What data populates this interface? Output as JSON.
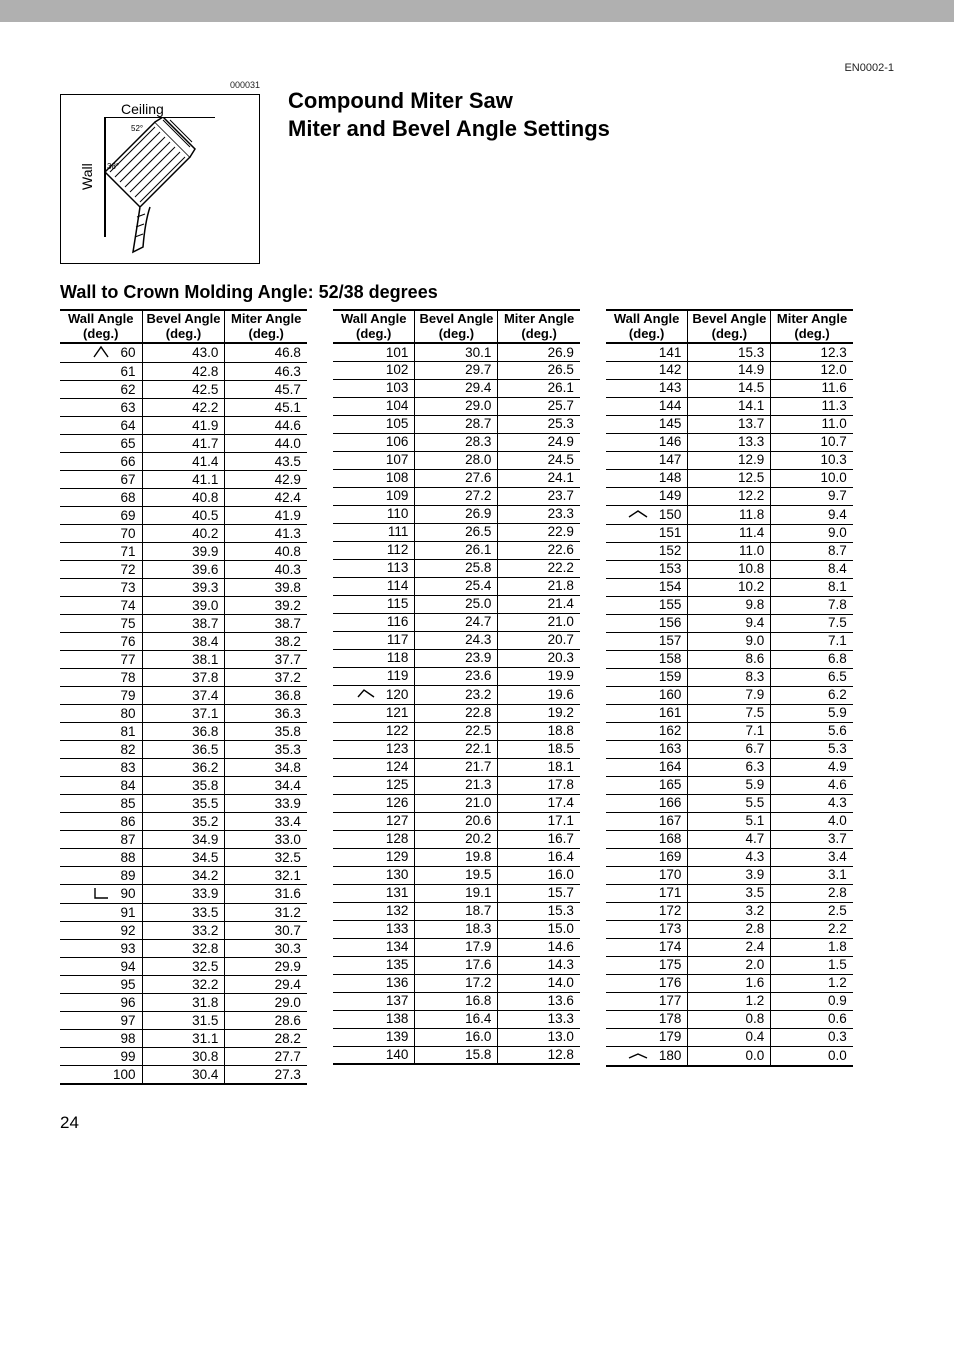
{
  "doc_code": "EN0002-1",
  "img_code": "000031",
  "title1": "Compound Miter Saw",
  "title2": "Miter and Bevel Angle Settings",
  "diagram": {
    "ceiling": "Ceiling",
    "wall": "Wall",
    "angle1": "52°",
    "angle2": "38°"
  },
  "section_title": "Wall to Crown Molding Angle: 52/38 degrees",
  "headers": {
    "wall": "Wall Angle",
    "bevel": "Bevel Angle",
    "miter": "Miter Angle",
    "deg": "(deg.)"
  },
  "page_num": "24",
  "icons": {
    "60": "angle-open-acute",
    "90": "angle-right",
    "120": "angle-obtuse",
    "150": "angle-wide",
    "180": "angle-flat"
  },
  "tall_rows": [
    60,
    79,
    80,
    90,
    91,
    120,
    121,
    131,
    132,
    150,
    160,
    161,
    171,
    172,
    180
  ],
  "colors": {
    "bar": "#b0b0b0",
    "text": "#000000"
  },
  "font_size": {
    "body": 13.5,
    "header": 13,
    "title": 22,
    "section": 18
  },
  "table1": [
    [
      60,
      "43.0",
      "46.8"
    ],
    [
      61,
      "42.8",
      "46.3"
    ],
    [
      62,
      "42.5",
      "45.7"
    ],
    [
      63,
      "42.2",
      "45.1"
    ],
    [
      64,
      "41.9",
      "44.6"
    ],
    [
      65,
      "41.7",
      "44.0"
    ],
    [
      66,
      "41.4",
      "43.5"
    ],
    [
      67,
      "41.1",
      "42.9"
    ],
    [
      68,
      "40.8",
      "42.4"
    ],
    [
      69,
      "40.5",
      "41.9"
    ],
    [
      70,
      "40.2",
      "41.3"
    ],
    [
      71,
      "39.9",
      "40.8"
    ],
    [
      72,
      "39.6",
      "40.3"
    ],
    [
      73,
      "39.3",
      "39.8"
    ],
    [
      74,
      "39.0",
      "39.2"
    ],
    [
      75,
      "38.7",
      "38.7"
    ],
    [
      76,
      "38.4",
      "38.2"
    ],
    [
      77,
      "38.1",
      "37.7"
    ],
    [
      78,
      "37.8",
      "37.2"
    ],
    [
      79,
      "37.4",
      "36.8"
    ],
    [
      80,
      "37.1",
      "36.3"
    ],
    [
      81,
      "36.8",
      "35.8"
    ],
    [
      82,
      "36.5",
      "35.3"
    ],
    [
      83,
      "36.2",
      "34.8"
    ],
    [
      84,
      "35.8",
      "34.4"
    ],
    [
      85,
      "35.5",
      "33.9"
    ],
    [
      86,
      "35.2",
      "33.4"
    ],
    [
      87,
      "34.9",
      "33.0"
    ],
    [
      88,
      "34.5",
      "32.5"
    ],
    [
      89,
      "34.2",
      "32.1"
    ],
    [
      90,
      "33.9",
      "31.6"
    ],
    [
      91,
      "33.5",
      "31.2"
    ],
    [
      92,
      "33.2",
      "30.7"
    ],
    [
      93,
      "32.8",
      "30.3"
    ],
    [
      94,
      "32.5",
      "29.9"
    ],
    [
      95,
      "32.2",
      "29.4"
    ],
    [
      96,
      "31.8",
      "29.0"
    ],
    [
      97,
      "31.5",
      "28.6"
    ],
    [
      98,
      "31.1",
      "28.2"
    ],
    [
      99,
      "30.8",
      "27.7"
    ],
    [
      100,
      "30.4",
      "27.3"
    ]
  ],
  "table2": [
    [
      101,
      "30.1",
      "26.9"
    ],
    [
      102,
      "29.7",
      "26.5"
    ],
    [
      103,
      "29.4",
      "26.1"
    ],
    [
      104,
      "29.0",
      "25.7"
    ],
    [
      105,
      "28.7",
      "25.3"
    ],
    [
      106,
      "28.3",
      "24.9"
    ],
    [
      107,
      "28.0",
      "24.5"
    ],
    [
      108,
      "27.6",
      "24.1"
    ],
    [
      109,
      "27.2",
      "23.7"
    ],
    [
      110,
      "26.9",
      "23.3"
    ],
    [
      111,
      "26.5",
      "22.9"
    ],
    [
      112,
      "26.1",
      "22.6"
    ],
    [
      113,
      "25.8",
      "22.2"
    ],
    [
      114,
      "25.4",
      "21.8"
    ],
    [
      115,
      "25.0",
      "21.4"
    ],
    [
      116,
      "24.7",
      "21.0"
    ],
    [
      117,
      "24.3",
      "20.7"
    ],
    [
      118,
      "23.9",
      "20.3"
    ],
    [
      119,
      "23.6",
      "19.9"
    ],
    [
      120,
      "23.2",
      "19.6"
    ],
    [
      121,
      "22.8",
      "19.2"
    ],
    [
      122,
      "22.5",
      "18.8"
    ],
    [
      123,
      "22.1",
      "18.5"
    ],
    [
      124,
      "21.7",
      "18.1"
    ],
    [
      125,
      "21.3",
      "17.8"
    ],
    [
      126,
      "21.0",
      "17.4"
    ],
    [
      127,
      "20.6",
      "17.1"
    ],
    [
      128,
      "20.2",
      "16.7"
    ],
    [
      129,
      "19.8",
      "16.4"
    ],
    [
      130,
      "19.5",
      "16.0"
    ],
    [
      131,
      "19.1",
      "15.7"
    ],
    [
      132,
      "18.7",
      "15.3"
    ],
    [
      133,
      "18.3",
      "15.0"
    ],
    [
      134,
      "17.9",
      "14.6"
    ],
    [
      135,
      "17.6",
      "14.3"
    ],
    [
      136,
      "17.2",
      "14.0"
    ],
    [
      137,
      "16.8",
      "13.6"
    ],
    [
      138,
      "16.4",
      "13.3"
    ],
    [
      139,
      "16.0",
      "13.0"
    ],
    [
      140,
      "15.8",
      "12.8"
    ]
  ],
  "table3": [
    [
      141,
      "15.3",
      "12.3"
    ],
    [
      142,
      "14.9",
      "12.0"
    ],
    [
      143,
      "14.5",
      "11.6"
    ],
    [
      144,
      "14.1",
      "11.3"
    ],
    [
      145,
      "13.7",
      "11.0"
    ],
    [
      146,
      "13.3",
      "10.7"
    ],
    [
      147,
      "12.9",
      "10.3"
    ],
    [
      148,
      "12.5",
      "10.0"
    ],
    [
      149,
      "12.2",
      "9.7"
    ],
    [
      150,
      "11.8",
      "9.4"
    ],
    [
      151,
      "11.4",
      "9.0"
    ],
    [
      152,
      "11.0",
      "8.7"
    ],
    [
      153,
      "10.8",
      "8.4"
    ],
    [
      154,
      "10.2",
      "8.1"
    ],
    [
      155,
      "9.8",
      "7.8"
    ],
    [
      156,
      "9.4",
      "7.5"
    ],
    [
      157,
      "9.0",
      "7.1"
    ],
    [
      158,
      "8.6",
      "6.8"
    ],
    [
      159,
      "8.3",
      "6.5"
    ],
    [
      160,
      "7.9",
      "6.2"
    ],
    [
      161,
      "7.5",
      "5.9"
    ],
    [
      162,
      "7.1",
      "5.6"
    ],
    [
      163,
      "6.7",
      "5.3"
    ],
    [
      164,
      "6.3",
      "4.9"
    ],
    [
      165,
      "5.9",
      "4.6"
    ],
    [
      166,
      "5.5",
      "4.3"
    ],
    [
      167,
      "5.1",
      "4.0"
    ],
    [
      168,
      "4.7",
      "3.7"
    ],
    [
      169,
      "4.3",
      "3.4"
    ],
    [
      170,
      "3.9",
      "3.1"
    ],
    [
      171,
      "3.5",
      "2.8"
    ],
    [
      172,
      "3.2",
      "2.5"
    ],
    [
      173,
      "2.8",
      "2.2"
    ],
    [
      174,
      "2.4",
      "1.8"
    ],
    [
      175,
      "2.0",
      "1.5"
    ],
    [
      176,
      "1.6",
      "1.2"
    ],
    [
      177,
      "1.2",
      "0.9"
    ],
    [
      178,
      "0.8",
      "0.6"
    ],
    [
      179,
      "0.4",
      "0.3"
    ],
    [
      180,
      "0.0",
      "0.0"
    ]
  ]
}
